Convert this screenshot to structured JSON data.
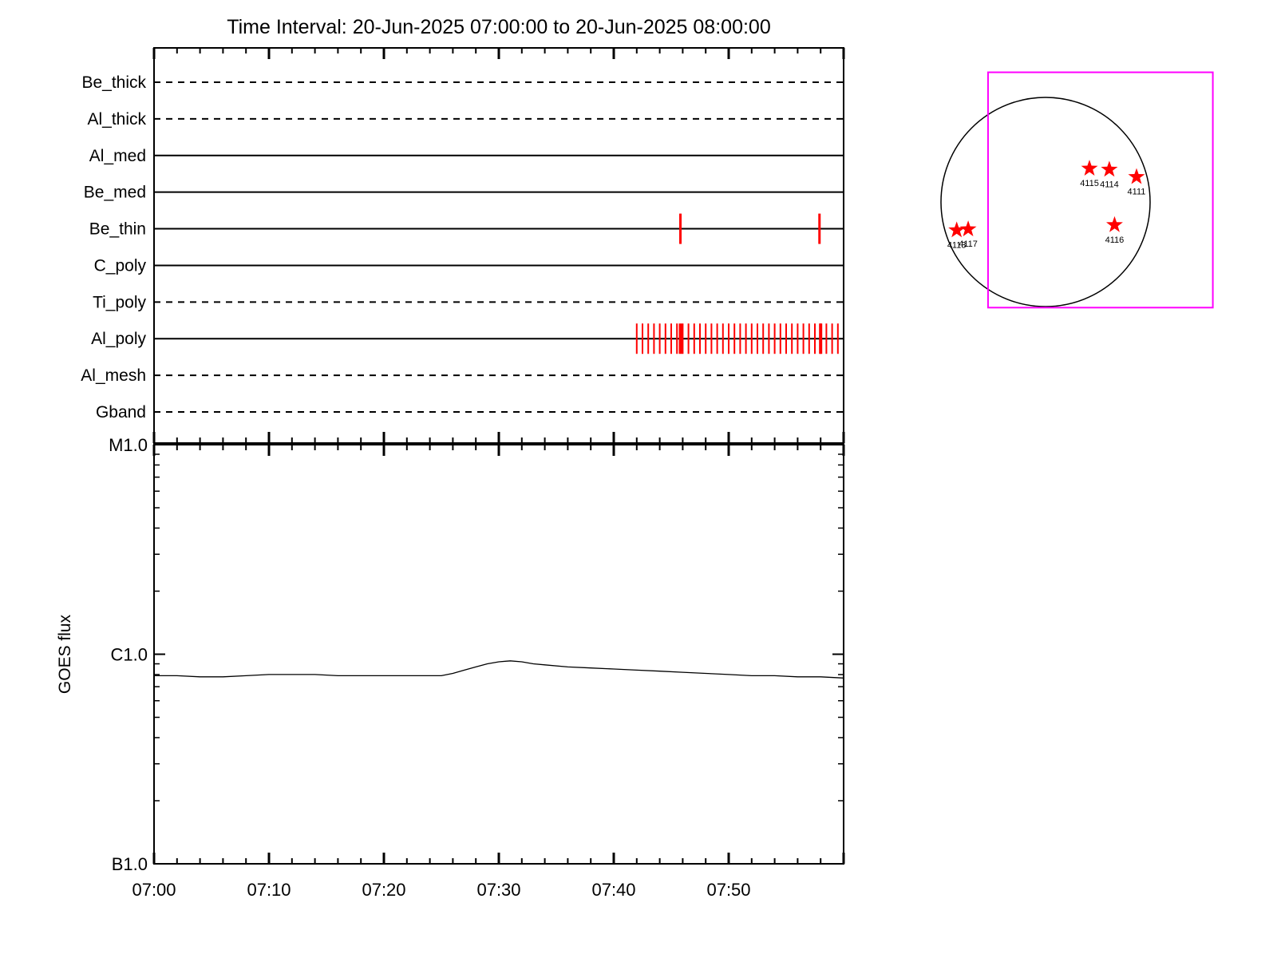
{
  "title": "Time Interval: 20-Jun-2025 07:00:00 to 20-Jun-2025 08:00:00",
  "chart_data": [
    {
      "type": "timeline",
      "name": "xrt_filter_timeline",
      "x_axis": {
        "start": "07:00",
        "end": "08:00",
        "major_tick_minutes": 10,
        "minor_tick_minutes": 2
      },
      "mark_color": "#ff0000",
      "rows": [
        {
          "label": "Be_thick",
          "line_style": "dashed",
          "exposure_marks": []
        },
        {
          "label": "Al_thick",
          "line_style": "dashed",
          "exposure_marks": []
        },
        {
          "label": "Al_med",
          "line_style": "solid",
          "exposure_marks": []
        },
        {
          "label": "Be_med",
          "line_style": "solid",
          "exposure_marks": []
        },
        {
          "label": "Be_thin",
          "line_style": "solid",
          "exposure_marks": [
            45.8,
            57.9
          ]
        },
        {
          "label": "C_poly",
          "line_style": "solid",
          "exposure_marks": []
        },
        {
          "label": "Ti_poly",
          "line_style": "dashed",
          "exposure_marks": []
        },
        {
          "label": "Al_poly",
          "line_style": "solid",
          "exposure_marks": [
            42,
            42.5,
            43,
            43.5,
            44,
            44.5,
            45,
            45.5,
            46,
            46.5,
            47,
            47.5,
            48,
            48.5,
            49,
            49.5,
            50,
            50.5,
            51,
            51.5,
            52,
            52.5,
            53,
            53.5,
            54,
            54.5,
            55,
            55.5,
            56,
            56.5,
            57,
            57.5,
            58,
            58.5,
            59,
            59.5
          ],
          "bold_marks": [
            45.8,
            58.0
          ]
        },
        {
          "label": "Al_mesh",
          "line_style": "dashed",
          "exposure_marks": []
        },
        {
          "label": "Gband",
          "line_style": "dashed",
          "exposure_marks": []
        }
      ]
    },
    {
      "type": "line",
      "name": "goes_flux",
      "ylabel": "GOES flux",
      "y_scale": "log",
      "ylim": [
        1e-07,
        1e-05
      ],
      "y_ticks": [
        {
          "label": "M1.0",
          "value": 1e-05
        },
        {
          "label": "C1.0",
          "value": 1e-06
        },
        {
          "label": "B1.0",
          "value": 1e-07
        }
      ],
      "x_tick_labels": [
        "07:00",
        "07:10",
        "07:20",
        "07:30",
        "07:40",
        "07:50"
      ],
      "x_minutes": [
        0,
        2,
        4,
        6,
        8,
        10,
        12,
        14,
        16,
        18,
        20,
        22,
        24,
        25,
        26,
        27,
        28,
        29,
        30,
        31,
        32,
        33,
        34,
        36,
        38,
        40,
        42,
        44,
        46,
        48,
        50,
        52,
        54,
        56,
        58,
        60
      ],
      "flux_wm2": [
        7.9e-07,
        7.9e-07,
        7.8e-07,
        7.8e-07,
        7.9e-07,
        8e-07,
        8e-07,
        8e-07,
        7.9e-07,
        7.9e-07,
        7.9e-07,
        7.9e-07,
        7.9e-07,
        7.9e-07,
        8.1e-07,
        8.4e-07,
        8.7e-07,
        9e-07,
        9.2e-07,
        9.3e-07,
        9.2e-07,
        9e-07,
        8.9e-07,
        8.7e-07,
        8.6e-07,
        8.5e-07,
        8.4e-07,
        8.3e-07,
        8.2e-07,
        8.1e-07,
        8e-07,
        7.9e-07,
        7.9e-07,
        7.8e-07,
        7.8e-07,
        7.7e-07
      ]
    },
    {
      "type": "scatter",
      "name": "solar_disk_active_regions",
      "units": "disk radii, screen y-down",
      "marker": "star",
      "marker_color": "#ff0000",
      "fov_box": {
        "x1": -0.55,
        "y1": -1.24,
        "x2": 1.6,
        "y2": 1.01,
        "color": "#ff00ff"
      },
      "regions": [
        {
          "label": "4115",
          "x": 0.42,
          "y": -0.32
        },
        {
          "label": "4114",
          "x": 0.61,
          "y": -0.31
        },
        {
          "label": "4111",
          "x": 0.87,
          "y": -0.24
        },
        {
          "label": "4116",
          "x": 0.66,
          "y": 0.22
        },
        {
          "label": "4113",
          "x": -0.85,
          "y": 0.27
        },
        {
          "label": "4117",
          "x": -0.74,
          "y": 0.26
        }
      ]
    }
  ]
}
